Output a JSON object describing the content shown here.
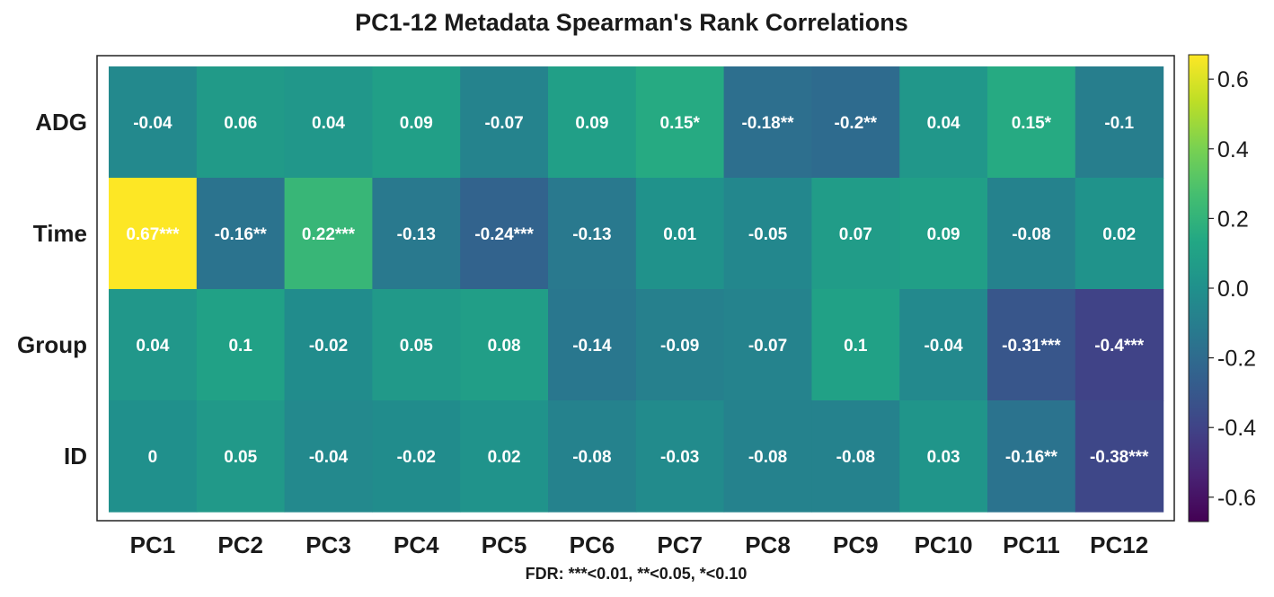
{
  "chart_data": {
    "type": "heatmap",
    "title": "PC1-12 Metadata Spearman's Rank Correlations",
    "xlabel": "FDR: ***<0.01, **<0.05, *<0.10",
    "ylabel": "",
    "x_categories": [
      "PC1",
      "PC2",
      "PC3",
      "PC4",
      "PC5",
      "PC6",
      "PC7",
      "PC8",
      "PC9",
      "PC10",
      "PC11",
      "PC12"
    ],
    "y_categories": [
      "ADG",
      "Time",
      "Group",
      "ID"
    ],
    "values": [
      [
        -0.04,
        0.06,
        0.04,
        0.09,
        -0.07,
        0.09,
        0.15,
        -0.18,
        -0.2,
        0.04,
        0.15,
        -0.1
      ],
      [
        0.67,
        -0.16,
        0.22,
        -0.13,
        -0.24,
        -0.13,
        0.01,
        -0.05,
        0.07,
        0.09,
        -0.08,
        0.02
      ],
      [
        0.04,
        0.1,
        -0.02,
        0.05,
        0.08,
        -0.14,
        -0.09,
        -0.07,
        0.1,
        -0.04,
        -0.31,
        -0.4
      ],
      [
        0,
        0.05,
        -0.04,
        -0.02,
        0.02,
        -0.08,
        -0.03,
        -0.08,
        -0.08,
        0.03,
        -0.16,
        -0.38
      ]
    ],
    "labels": [
      [
        "-0.04",
        "0.06",
        "0.04",
        "0.09",
        "-0.07",
        "0.09",
        "0.15*",
        "-0.18**",
        "-0.2**",
        "0.04",
        "0.15*",
        "-0.1"
      ],
      [
        "0.67***",
        "-0.16**",
        "0.22***",
        "-0.13",
        "-0.24***",
        "-0.13",
        "0.01",
        "-0.05",
        "0.07",
        "0.09",
        "-0.08",
        "0.02"
      ],
      [
        "0.04",
        "0.1",
        "-0.02",
        "0.05",
        "0.08",
        "-0.14",
        "-0.09",
        "-0.07",
        "0.1",
        "-0.04",
        "-0.31***",
        "-0.4***"
      ],
      [
        "0",
        "0.05",
        "-0.04",
        "-0.02",
        "0.02",
        "-0.08",
        "-0.03",
        "-0.08",
        "-0.08",
        "0.03",
        "-0.16**",
        "-0.38***"
      ]
    ],
    "colorbar": {
      "colormap": "viridis",
      "range": [
        -0.67,
        0.67
      ],
      "ticks": [
        0.6,
        0.4,
        0.2,
        0.0,
        -0.2,
        -0.4,
        -0.6
      ],
      "tick_labels": [
        "0.6",
        "0.4",
        "0.2",
        "0.0",
        "-0.2",
        "-0.4",
        "-0.6"
      ],
      "position": "right"
    },
    "grid": false
  }
}
